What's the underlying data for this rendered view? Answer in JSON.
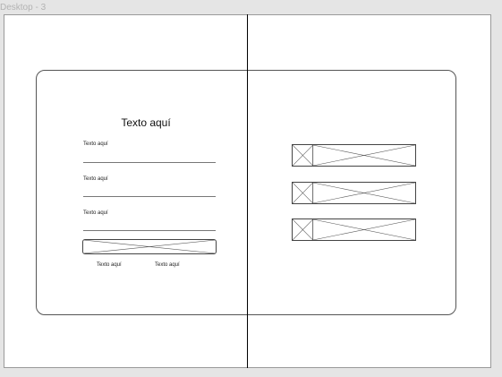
{
  "frame": {
    "name": "Desktop - 3"
  },
  "form": {
    "title": "Texto aquí",
    "fields": [
      {
        "label": "Texto aquí"
      },
      {
        "label": "Texto aquí"
      },
      {
        "label": "Texto aquí"
      }
    ],
    "links": [
      {
        "label": "Texto aquí"
      },
      {
        "label": "Texto aquí"
      }
    ]
  },
  "list": {
    "items": 3
  },
  "colors": {
    "canvas": "#e5e5e5",
    "frame": "#ffffff",
    "stroke": "#444444"
  }
}
